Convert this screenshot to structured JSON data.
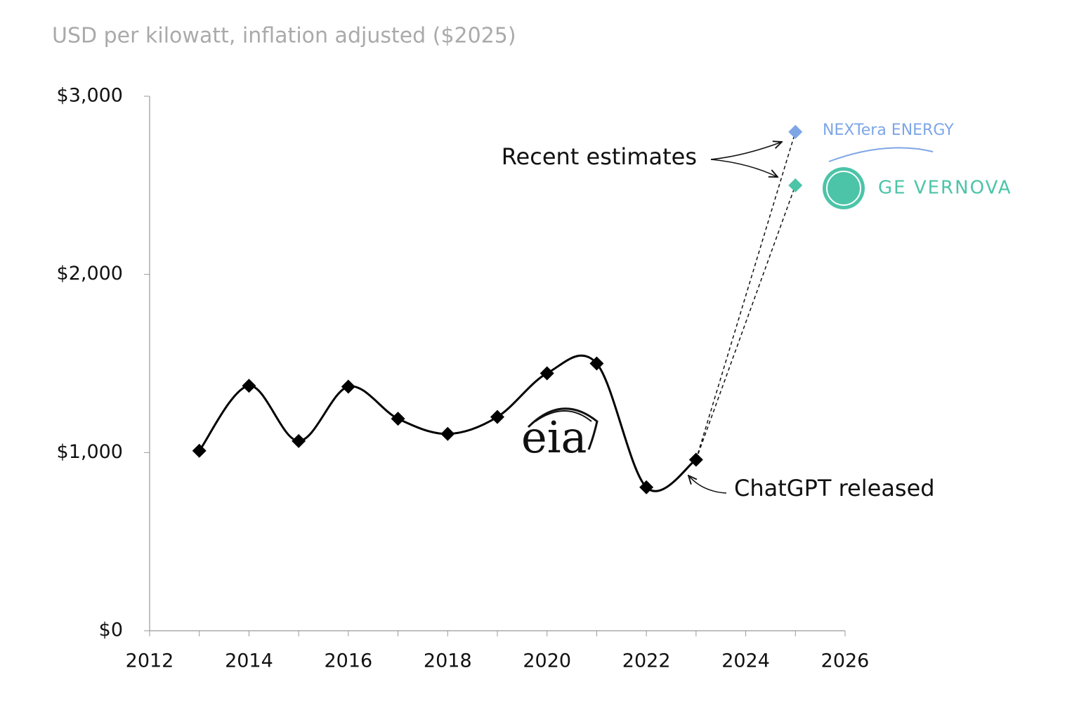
{
  "chart_data": {
    "type": "line",
    "ylabel": "USD per kilowatt, inflation adjusted ($2025)",
    "series": [
      {
        "name": "eia",
        "color": "#000000",
        "x": [
          2013,
          2014,
          2015,
          2016,
          2017,
          2018,
          2019,
          2020,
          2021,
          2022,
          2023
        ],
        "values": [
          1010,
          1375,
          1065,
          1370,
          1190,
          1105,
          1200,
          1445,
          1500,
          805,
          960
        ]
      },
      {
        "name": "NEXTera ENERGY",
        "color": "#7ea6e6",
        "x": [
          2025
        ],
        "values": [
          2800
        ]
      },
      {
        "name": "GE VERNOVA",
        "color": "#4cc4a8",
        "x": [
          2025
        ],
        "values": [
          2500
        ]
      }
    ],
    "xlim": [
      2012,
      2026
    ],
    "xticks": [
      2012,
      2014,
      2016,
      2018,
      2020,
      2022,
      2024,
      2026
    ],
    "xminorticks": [
      2013,
      2015,
      2017,
      2019,
      2021,
      2023,
      2025
    ],
    "ylim": [
      0,
      3000
    ],
    "yticks": [
      {
        "value": 0,
        "label": "$0"
      },
      {
        "value": 1000,
        "label": "$1,000"
      },
      {
        "value": 2000,
        "label": "$2,000"
      },
      {
        "value": 3000,
        "label": "$3,000"
      }
    ],
    "annotations": [
      "Recent estimates",
      "ChatGPT released"
    ]
  }
}
